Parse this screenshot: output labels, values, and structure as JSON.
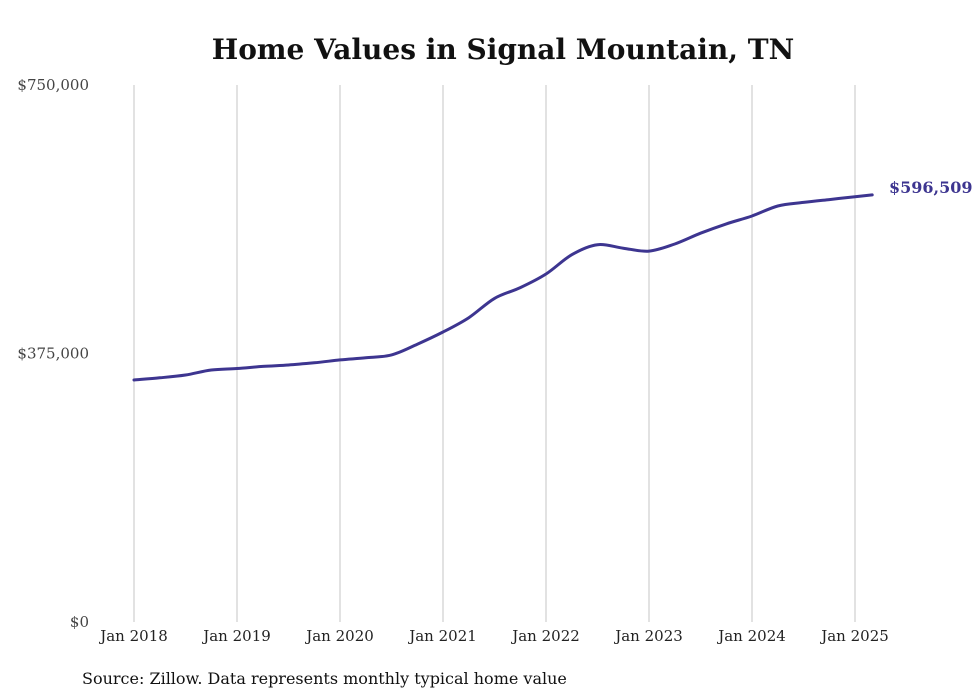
{
  "chart_data": {
    "type": "line",
    "title": "Home Values in Signal Mountain, TN",
    "source": "Source: Zillow. Data represents monthly typical home value",
    "x_start": "Jan 2018",
    "x_end": "Mar 2025",
    "x_tick_labels": [
      "Jan 2018",
      "Jan 2019",
      "Jan 2020",
      "Jan 2021",
      "Jan 2022",
      "Jan 2023",
      "Jan 2024",
      "Jan 2025"
    ],
    "y_tick_labels": [
      "$750,000",
      "$375,000",
      "$0"
    ],
    "y_ticks": [
      750000,
      375000,
      0
    ],
    "ylim": [
      0,
      750000
    ],
    "grid": "vertical lines at January of each year",
    "line_color": "#3d3590",
    "end_label": "$596,509",
    "series": [
      {
        "points": [
          [
            "2018-01",
            338000
          ],
          [
            "2018-04",
            341000
          ],
          [
            "2018-07",
            345000
          ],
          [
            "2018-10",
            352000
          ],
          [
            "2019-01",
            354000
          ],
          [
            "2019-04",
            357000
          ],
          [
            "2019-07",
            359000
          ],
          [
            "2019-10",
            362000
          ],
          [
            "2020-01",
            366000
          ],
          [
            "2020-04",
            369000
          ],
          [
            "2020-07",
            373000
          ],
          [
            "2020-10",
            388000
          ],
          [
            "2021-01",
            405000
          ],
          [
            "2021-04",
            425000
          ],
          [
            "2021-07",
            452000
          ],
          [
            "2021-10",
            467000
          ],
          [
            "2022-01",
            486000
          ],
          [
            "2022-04",
            513000
          ],
          [
            "2022-07",
            527000
          ],
          [
            "2022-10",
            522000
          ],
          [
            "2023-01",
            518000
          ],
          [
            "2023-04",
            528000
          ],
          [
            "2023-07",
            543000
          ],
          [
            "2023-10",
            556000
          ],
          [
            "2024-01",
            567000
          ],
          [
            "2024-04",
            581000
          ],
          [
            "2024-07",
            586000
          ],
          [
            "2024-10",
            590000
          ],
          [
            "2025-01",
            594000
          ],
          [
            "2025-03",
            596509
          ]
        ]
      }
    ]
  }
}
